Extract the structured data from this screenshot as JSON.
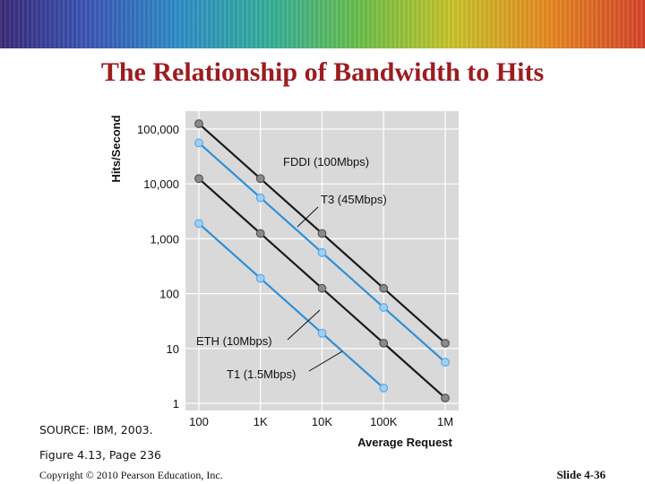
{
  "slide": {
    "title": "The Relationship of Bandwidth to Hits",
    "source": "SOURCE: IBM, 2003.",
    "figure": "Figure 4.13, Page 236",
    "copyright": "Copyright © 2010 Pearson Education, Inc.",
    "slide_number": "Slide 4-36"
  },
  "colors": {
    "title": "#9c1c20",
    "plot_background": "#d9d9d9",
    "black_series": "#1a1a1a",
    "blue_series": "#2f8fd6"
  },
  "chart_data": {
    "type": "line",
    "xlabel": "Average Request",
    "ylabel": "Hits/Second",
    "x_scale": "log",
    "y_scale": "log",
    "x_ticks": [
      100,
      1000,
      10000,
      100000,
      1000000
    ],
    "x_tick_labels": [
      "100",
      "1K",
      "10K",
      "100K",
      "1M"
    ],
    "y_ticks": [
      1,
      10,
      100,
      1000,
      10000,
      100000
    ],
    "y_tick_labels": [
      "1",
      "10",
      "100",
      "1,000",
      "10,000",
      "100,000"
    ],
    "grid": true,
    "series": [
      {
        "name": "FDDI (100Mbps)",
        "color": "#1a1a1a",
        "x": [
          100,
          1000,
          10000,
          100000,
          1000000
        ],
        "y": [
          125000,
          12500,
          1250,
          125,
          12.5
        ]
      },
      {
        "name": "T3 (45Mbps)",
        "color": "#2f8fd6",
        "x": [
          100,
          1000,
          10000,
          100000,
          1000000
        ],
        "y": [
          56000,
          5600,
          560,
          56,
          5.6
        ]
      },
      {
        "name": "ETH (10Mbps)",
        "color": "#1a1a1a",
        "x": [
          100,
          1000,
          10000,
          100000,
          1000000
        ],
        "y": [
          12500,
          1250,
          125,
          12.5,
          1.25
        ]
      },
      {
        "name": "T1 (1.5Mbps)",
        "color": "#2f8fd6",
        "x": [
          100,
          1000,
          10000,
          100000
        ],
        "y": [
          1900,
          190,
          19,
          1.9
        ]
      }
    ]
  }
}
